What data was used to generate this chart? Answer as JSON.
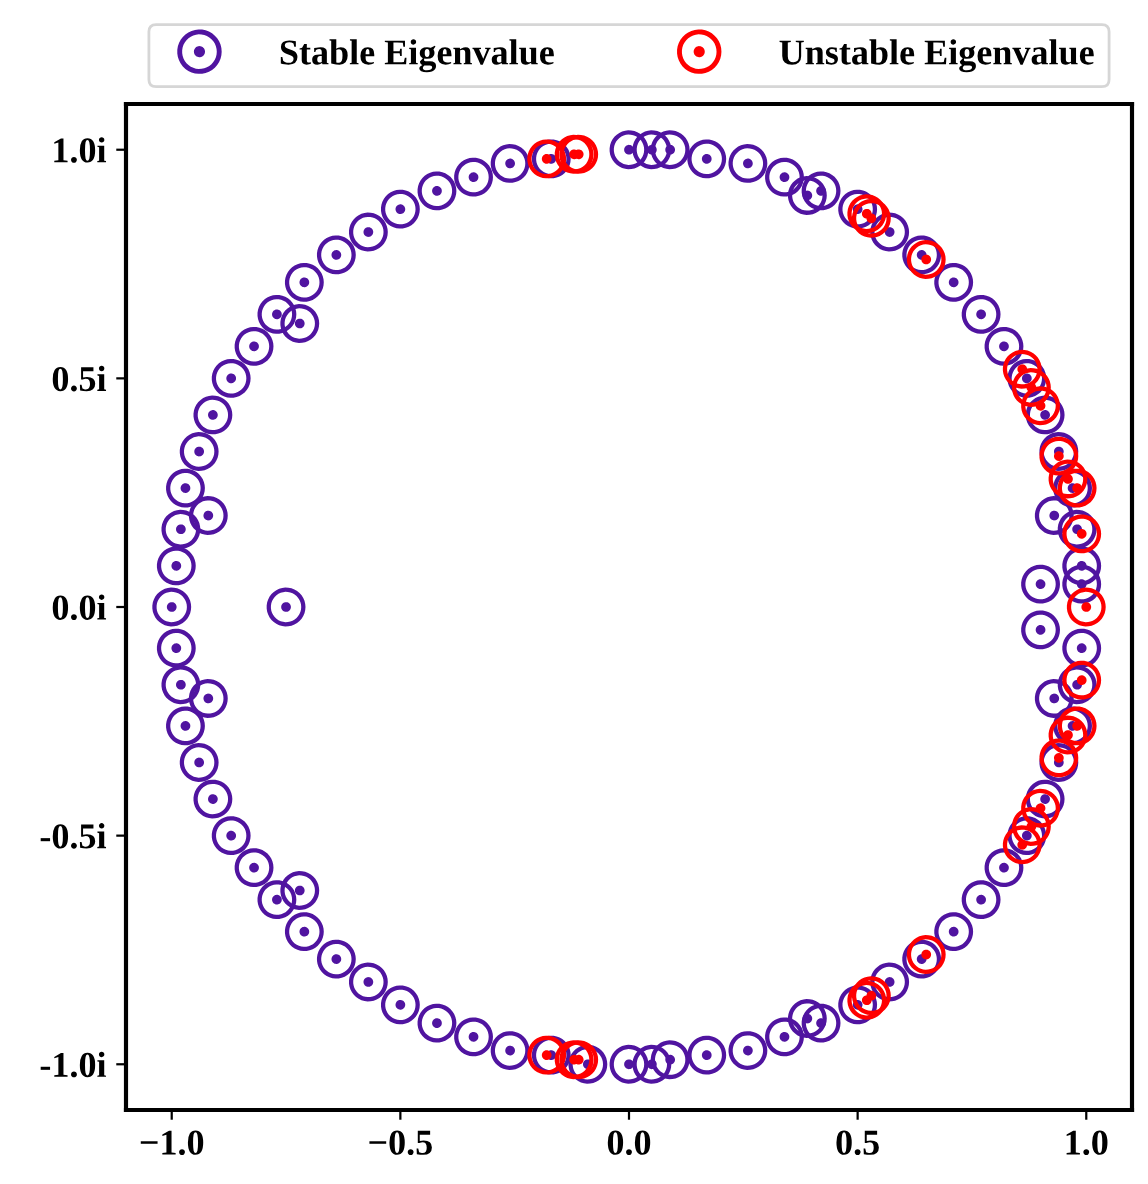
{
  "chart_data": {
    "type": "scatter",
    "xlim": [
      -1.1,
      1.1
    ],
    "ylim": [
      -1.1,
      1.1
    ],
    "xticks": [
      {
        "value": -1.0,
        "label": "−1.0"
      },
      {
        "value": -0.5,
        "label": "−0.5"
      },
      {
        "value": 0.0,
        "label": "0.0"
      },
      {
        "value": 0.5,
        "label": "0.5"
      },
      {
        "value": 1.0,
        "label": "1.0"
      }
    ],
    "yticks": [
      {
        "value": -1.0,
        "label": "-1.0i"
      },
      {
        "value": -0.5,
        "label": "-0.5i"
      },
      {
        "value": 0.0,
        "label": "0.0i"
      },
      {
        "value": 0.5,
        "label": "0.5i"
      },
      {
        "value": 1.0,
        "label": "1.0i"
      }
    ],
    "grid": false,
    "legend": "top",
    "marker": "circle",
    "series": [
      {
        "name": "Stable Eigenvalue",
        "color": "#5014a0",
        "x": [
          0.99,
          0.99,
          0.98,
          0.97,
          0.94,
          0.91,
          0.87,
          0.82,
          0.77,
          0.71,
          0.64,
          0.57,
          0.5,
          0.42,
          0.34,
          0.26,
          0.17,
          0.09,
          0.0,
          -0.17,
          -0.26,
          -0.34,
          -0.42,
          -0.5,
          -0.57,
          -0.64,
          -0.71,
          -0.77,
          -0.82,
          -0.87,
          -0.91,
          -0.94,
          -0.97,
          -0.98,
          -0.99,
          -1.0,
          -0.99,
          -0.98,
          -0.97,
          -0.94,
          -0.91,
          -0.87,
          -0.82,
          -0.77,
          -0.71,
          -0.64,
          -0.57,
          -0.5,
          -0.42,
          -0.34,
          -0.26,
          -0.17,
          -0.09,
          0.0,
          0.09,
          0.17,
          0.26,
          0.34,
          0.42,
          0.5,
          0.57,
          0.64,
          0.71,
          0.77,
          0.82,
          0.87,
          0.91,
          0.94,
          0.97,
          0.98,
          0.99,
          -0.75,
          0.9,
          0.9,
          -0.92,
          -0.92,
          0.93,
          0.93,
          -0.72,
          -0.72,
          0.39,
          0.39,
          0.05,
          0.05
        ],
        "values": [
          0.05,
          0.09,
          0.17,
          0.26,
          0.34,
          0.42,
          0.5,
          0.57,
          0.64,
          0.71,
          0.77,
          0.82,
          0.87,
          0.91,
          0.94,
          0.97,
          0.98,
          1.0,
          1.0,
          0.98,
          0.97,
          0.94,
          0.91,
          0.87,
          0.82,
          0.77,
          0.71,
          0.64,
          0.57,
          0.5,
          0.42,
          0.34,
          0.26,
          0.17,
          0.09,
          0.0,
          -0.09,
          -0.17,
          -0.26,
          -0.34,
          -0.42,
          -0.5,
          -0.57,
          -0.64,
          -0.71,
          -0.77,
          -0.82,
          -0.87,
          -0.91,
          -0.94,
          -0.97,
          -0.98,
          -1.0,
          -1.0,
          -0.99,
          -0.98,
          -0.97,
          -0.94,
          -0.91,
          -0.87,
          -0.82,
          -0.77,
          -0.71,
          -0.64,
          -0.57,
          -0.5,
          -0.42,
          -0.34,
          -0.26,
          -0.17,
          -0.09,
          0.0,
          0.05,
          -0.05,
          0.2,
          -0.2,
          0.2,
          -0.2,
          0.62,
          -0.62,
          0.9,
          -0.9,
          1.0,
          -1.0
        ]
      },
      {
        "name": "Unstable Eigenvalue",
        "color": "#ff0000",
        "x": [
          -0.18,
          -0.12,
          -0.11,
          0.52,
          0.53,
          0.65,
          0.86,
          0.88,
          0.9,
          0.94,
          0.96,
          0.98,
          0.99,
          1.0,
          -0.18,
          -0.12,
          -0.11,
          0.52,
          0.53,
          0.65,
          0.86,
          0.88,
          0.9,
          0.94,
          0.96,
          0.98,
          0.99
        ],
        "values": [
          0.98,
          0.99,
          0.99,
          0.86,
          0.85,
          0.76,
          0.52,
          0.48,
          0.44,
          0.33,
          0.28,
          0.26,
          0.16,
          0.0,
          -0.98,
          -0.99,
          -0.99,
          -0.86,
          -0.85,
          -0.76,
          -0.52,
          -0.48,
          -0.44,
          -0.33,
          -0.28,
          -0.26,
          -0.16
        ]
      }
    ]
  }
}
